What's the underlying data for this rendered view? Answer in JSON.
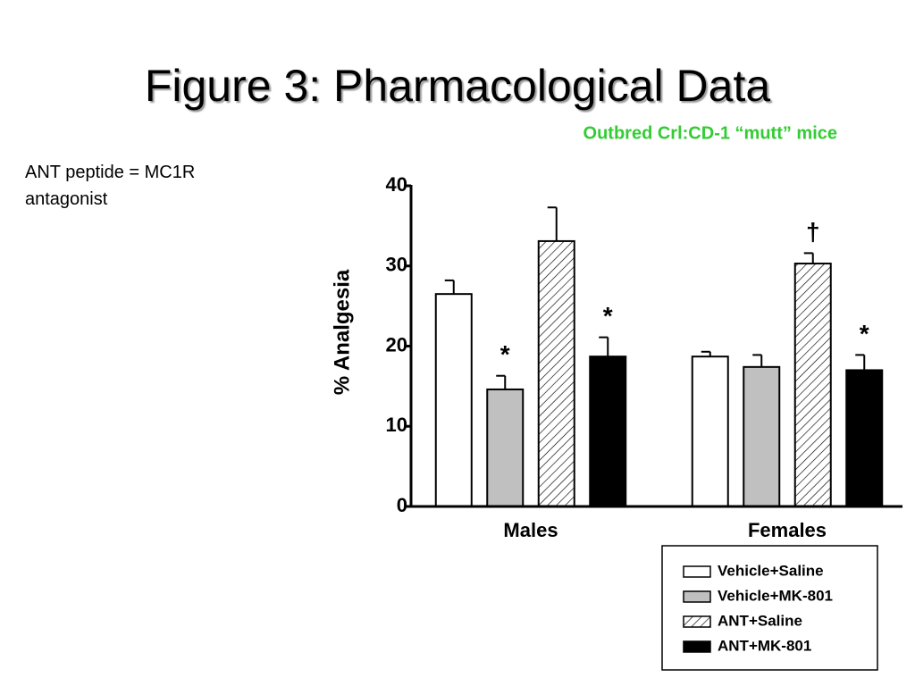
{
  "title": "Figure 3: Pharmacological Data",
  "subtitle": "Outbred Crl:CD-1 “mutt” mice",
  "note": "ANT peptide = MC1R antagonist",
  "chart_data": {
    "type": "bar",
    "y_label": "% Analgesia",
    "categories": [
      "Males",
      "Females"
    ],
    "ylim": [
      0,
      40
    ],
    "yticks": [
      0,
      10,
      20,
      30,
      40
    ],
    "series": [
      {
        "name": "Vehicle+Saline",
        "color": "#ffffff",
        "values": [
          26.5,
          18.7
        ],
        "errors": [
          1.7,
          0.6
        ],
        "annotations": [
          null,
          null
        ]
      },
      {
        "name": "Vehicle+MK-801",
        "color": "#c0c0c0",
        "values": [
          14.6,
          17.4
        ],
        "errors": [
          1.7,
          1.5
        ],
        "annotations": [
          "*",
          null
        ]
      },
      {
        "name": "ANT+Saline",
        "color": "#ffffff",
        "pattern": "hatch",
        "values": [
          33.1,
          30.3
        ],
        "errors": [
          4.2,
          1.3
        ],
        "annotations": [
          null,
          "†"
        ]
      },
      {
        "name": "ANT+MK-801",
        "color": "#000000",
        "values": [
          18.7,
          17.0
        ],
        "errors": [
          2.4,
          1.9
        ],
        "annotations": [
          "*",
          "*"
        ]
      }
    ]
  }
}
